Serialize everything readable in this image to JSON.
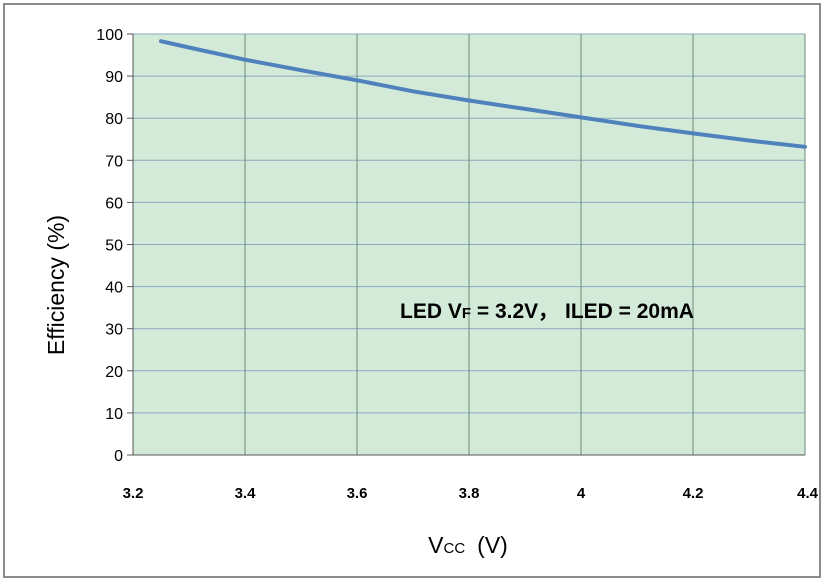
{
  "chart_data": {
    "type": "line",
    "title": "",
    "xlabel_main": "V",
    "xlabel_sub": "CC",
    "xlabel_unit": "(V)",
    "ylabel": "Efficiency (%)",
    "xlim": [
      3.2,
      4.4
    ],
    "ylim": [
      0,
      100
    ],
    "x_ticks": [
      3.2,
      3.4,
      3.6,
      3.8,
      4,
      4.2,
      4.4
    ],
    "x_tick_labels": [
      "3.2",
      "3.4",
      "3.6",
      "3.8",
      "4",
      "4.2",
      "4.4"
    ],
    "y_ticks": [
      0,
      10,
      20,
      30,
      40,
      50,
      60,
      70,
      80,
      90,
      100
    ],
    "y_tick_labels": [
      "0",
      "10",
      "20",
      "30",
      "40",
      "50",
      "60",
      "70",
      "80",
      "90",
      "100"
    ],
    "grid": true,
    "series": [
      {
        "color": "#4f81bd",
        "x": [
          3.25,
          3.3,
          3.4,
          3.5,
          3.6,
          3.7,
          3.8,
          3.9,
          4.0,
          4.1,
          4.2,
          4.3,
          4.4
        ],
        "y": [
          98.3,
          96.8,
          93.9,
          91.4,
          89.0,
          86.4,
          84.2,
          82.2,
          80.2,
          78.2,
          76.4,
          74.7,
          73.2
        ]
      }
    ],
    "annotation": {
      "led": "LED V",
      "vf_sub": "F",
      "rest": " = 3.2V， ILED = 20mA"
    },
    "colors": {
      "plot_background": "#d4ead9",
      "gridline": "#8aa8c0",
      "vertical_gridline": "#6e8a78"
    }
  }
}
